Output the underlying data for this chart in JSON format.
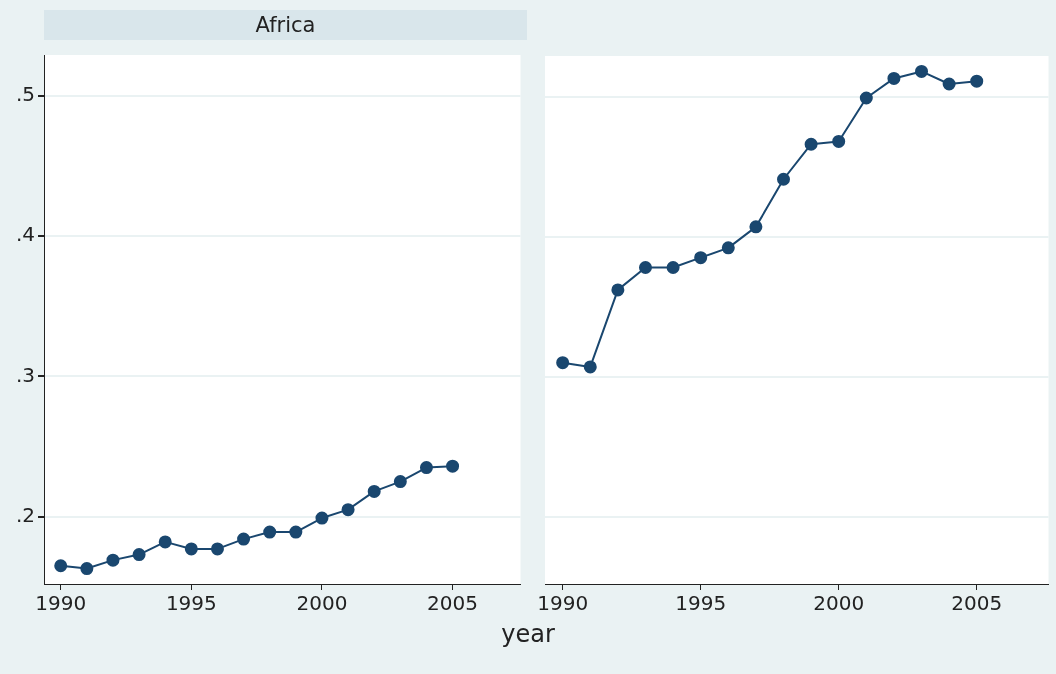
{
  "chart_data": [
    {
      "type": "line",
      "title": "Africa",
      "xlabel": "year",
      "x": [
        1990,
        1991,
        1992,
        1993,
        1994,
        1995,
        1996,
        1997,
        1998,
        1999,
        2000,
        2001,
        2002,
        2003,
        2004,
        2005
      ],
      "series": [
        {
          "color": "#1a476f",
          "values": [
            0.165,
            0.163,
            0.169,
            0.173,
            0.182,
            0.177,
            0.177,
            0.184,
            0.189,
            0.189,
            0.199,
            0.205,
            0.218,
            0.225,
            0.235,
            0.236
          ]
        }
      ],
      "xlim": [
        1989.36,
        2007.6
      ],
      "xticks": [
        1990,
        1995,
        2000,
        2005
      ],
      "ylim": [
        0.152,
        0.529
      ],
      "yticks": [
        {
          "value": 0.2,
          "label": ".2"
        },
        {
          "value": 0.3,
          "label": ".3"
        },
        {
          "value": 0.4,
          "label": ".4"
        },
        {
          "value": 0.5,
          "label": ".5"
        }
      ],
      "grid": "y",
      "marker": "circle",
      "line_style": "solid",
      "legend": false
    },
    {
      "type": "line",
      "x": [
        1990,
        1991,
        1992,
        1993,
        1994,
        1995,
        1996,
        1997,
        1998,
        1999,
        2000,
        2001,
        2002,
        2003,
        2004,
        2005
      ],
      "series": [
        {
          "color": "#1a476f",
          "values": [
            0.31,
            0.307,
            0.362,
            0.378,
            0.378,
            0.385,
            0.392,
            0.407,
            0.441,
            0.466,
            0.468,
            0.499,
            0.513,
            0.518,
            0.509,
            0.511
          ]
        }
      ],
      "xlim": [
        1989.36,
        2007.6
      ],
      "xticks": [
        1990,
        1995,
        2000,
        2005
      ],
      "ylim": [
        0.152,
        0.529
      ],
      "yticks": [
        {
          "value": 0.2,
          "label": null
        },
        {
          "value": 0.3,
          "label": null
        },
        {
          "value": 0.4,
          "label": null
        },
        {
          "value": 0.5,
          "label": null
        }
      ],
      "grid": "y",
      "marker": "circle",
      "line_style": "solid",
      "legend": false,
      "tick_labels": "x"
    }
  ]
}
